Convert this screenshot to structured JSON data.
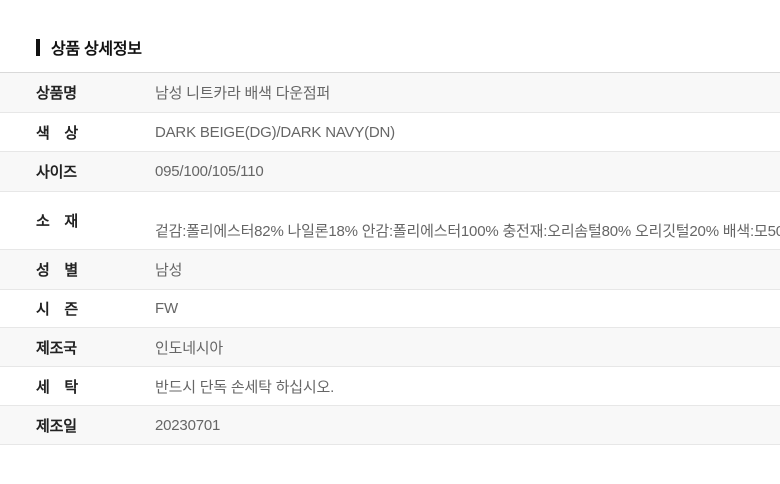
{
  "header": {
    "title": "상품 상세정보"
  },
  "table": {
    "rows": [
      {
        "label": "상품명",
        "value": "남성 니트카라 배색 다운점퍼"
      },
      {
        "label": "색　상",
        "value": "DARK BEIGE(DG)/DARK NAVY(DN)"
      },
      {
        "label": "사이즈",
        "value": "095/100/105/110"
      },
      {
        "label": "소　재",
        "value": "겉감:폴리에스터82% 나일론18% 안감:폴리에스터100% 충전재:오리솜털80% 오리깃털20% 배색:모50"
      },
      {
        "label": "성　별",
        "value": "남성"
      },
      {
        "label": "시　즌",
        "value": "FW"
      },
      {
        "label": "제조국",
        "value": "인도네시아"
      },
      {
        "label": "세　탁",
        "value": "반드시 단독 손세탁 하십시오."
      },
      {
        "label": "제조일",
        "value": "20230701"
      }
    ]
  },
  "colors": {
    "title_color": "#111111",
    "label_color": "#222222",
    "value_color": "#666666",
    "row_stripe_color": "#f8f8f8",
    "divider_color": "#e7e7e7",
    "divider_top_color": "#d9d9d9"
  }
}
